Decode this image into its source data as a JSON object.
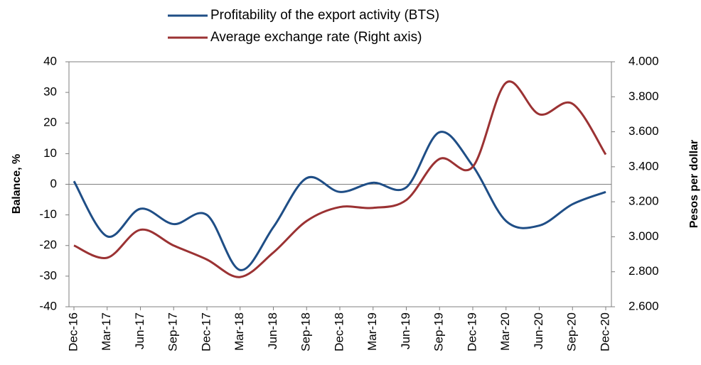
{
  "chart_data": {
    "type": "line",
    "y_label": "Balance, %",
    "y2_label": "Pesos per dollar",
    "categories": [
      "Dec-16",
      "Mar-17",
      "Jun-17",
      "Sep-17",
      "Dec-17",
      "Mar-18",
      "Jun-18",
      "Sep-18",
      "Dec-18",
      "Mar-19",
      "Jun-19",
      "Sep-19",
      "Dec-19",
      "Mar-20",
      "Jun-20",
      "Sep-20",
      "Dec-20"
    ],
    "series": [
      {
        "name": "Profitability of the export activity (BTS)",
        "color": "#1f4e86",
        "values": [
          1,
          -17,
          -8,
          -13,
          -10,
          -28,
          -14,
          2,
          -2.5,
          0.5,
          -1,
          17,
          6,
          -12,
          -13.5,
          -6.5,
          -2.5
        ]
      },
      {
        "name": "Average exchange rate  (Right axis)",
        "color": "#9b3233",
        "axis": "y2",
        "values": [
          2.95,
          2.88,
          3.04,
          2.95,
          2.87,
          2.77,
          2.91,
          3.09,
          3.17,
          3.165,
          3.21,
          3.445,
          3.4,
          3.88,
          3.7,
          3.76,
          3.47
        ]
      }
    ],
    "ylim": [
      -40,
      40
    ],
    "yticks": [
      -40,
      -30,
      -20,
      -10,
      0,
      10,
      20,
      30,
      40
    ],
    "y2lim": [
      2.6,
      4.0
    ],
    "y2ticks": [
      {
        "value": 2.6,
        "label": "2.600"
      },
      {
        "value": 2.8,
        "label": "2.800"
      },
      {
        "value": 3.0,
        "label": "3.000"
      },
      {
        "value": 3.2,
        "label": "3.200"
      },
      {
        "value": 3.4,
        "label": "3.400"
      },
      {
        "value": 3.6,
        "label": "3.600"
      },
      {
        "value": 3.8,
        "label": "3.800"
      },
      {
        "value": 4.0,
        "label": "4.000"
      }
    ],
    "grid": false,
    "legend": "top"
  }
}
